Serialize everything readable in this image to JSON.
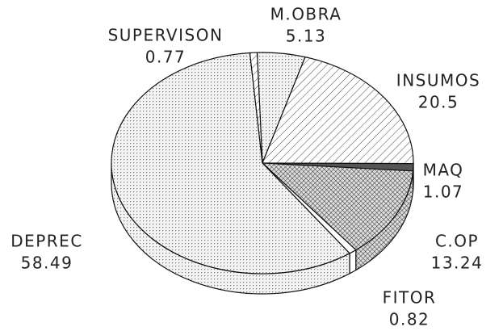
{
  "chart_data": {
    "type": "pie3d",
    "categories": [
      "M.OBRA",
      "INSUMOS",
      "MAQ",
      "C.OP",
      "FITOR",
      "DEPREC",
      "SUPERVISON"
    ],
    "values": [
      5.13,
      20.5,
      1.07,
      13.24,
      0.82,
      58.49,
      0.77
    ],
    "patterns": [
      "dots",
      "hatch",
      "dark",
      "cross",
      "none",
      "dots",
      "hatch"
    ]
  }
}
